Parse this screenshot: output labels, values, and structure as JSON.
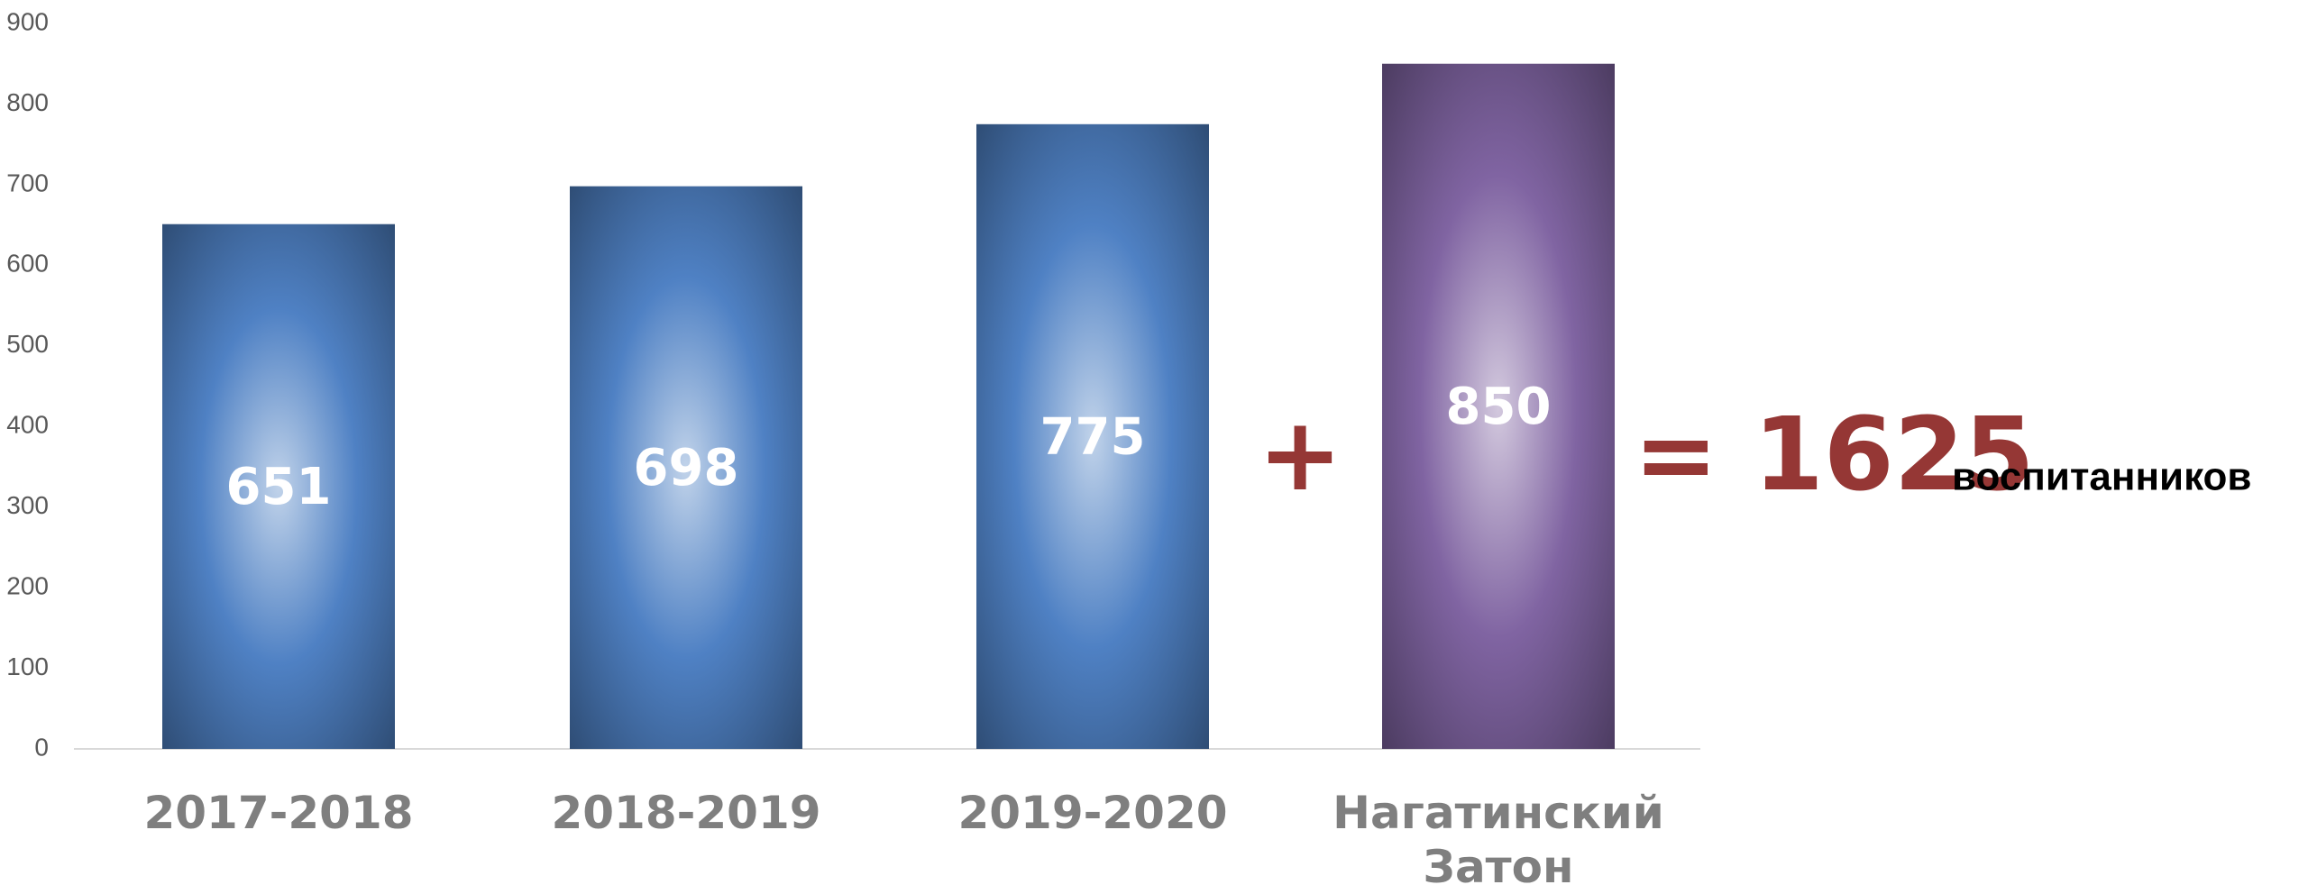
{
  "chart_data": {
    "type": "bar",
    "categories": [
      "2017-2018",
      "2018-2019",
      "2019-2020",
      "Нагатинский Затон"
    ],
    "values": [
      651,
      698,
      775,
      850
    ],
    "colors": [
      "#4f81c4",
      "#4f81c4",
      "#4f81c4",
      "#8064a2"
    ],
    "ylim": [
      0,
      900
    ],
    "yticks": [
      0,
      100,
      200,
      300,
      400,
      500,
      600,
      700,
      800,
      900
    ],
    "grid": false,
    "annotations": [
      "+",
      "= 1625",
      "воспитанников"
    ]
  }
}
